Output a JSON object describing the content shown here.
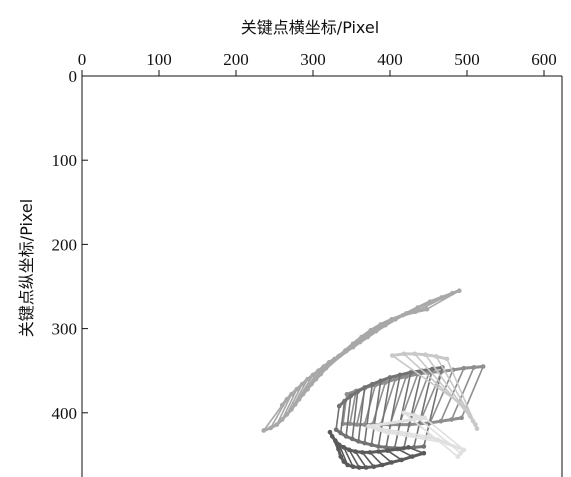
{
  "chart_data": {
    "type": "line",
    "xlabel": "关键点横坐标/Pixel",
    "ylabel": "关键点纵坐标/Pixel",
    "xlim": [
      0,
      630
    ],
    "ylim": [
      0,
      480
    ],
    "x_axis_position": "top",
    "y_inverted": true,
    "grid": false,
    "x_ticks": [
      0,
      100,
      200,
      300,
      400,
      500,
      600
    ],
    "y_ticks": [
      0,
      100,
      200,
      300,
      400
    ],
    "colors": [
      "#a8a8a8",
      "#8e8e8e",
      "#727272",
      "#5a5a5a",
      "#c8c8c8",
      "#e0e0e0"
    ],
    "series": [
      {
        "color": "#a8a8a8",
        "segments": [
          [
            [
              236,
              421
            ],
            [
              260,
              391
            ]
          ],
          [
            [
              245,
              418
            ],
            [
              266,
              384
            ]
          ],
          [
            [
              253,
              414
            ],
            [
              272,
              378
            ]
          ],
          [
            [
              260,
              408
            ],
            [
              279,
              372
            ]
          ],
          [
            [
              266,
              402
            ],
            [
              286,
              366
            ]
          ],
          [
            [
              272,
              396
            ],
            [
              293,
              360
            ]
          ],
          [
            [
              277,
              390
            ],
            [
              300,
              355
            ]
          ],
          [
            [
              282,
              384
            ],
            [
              307,
              350
            ]
          ],
          [
            [
              287,
              378
            ],
            [
              314,
              345
            ]
          ],
          [
            [
              293,
              372
            ],
            [
              321,
              340
            ]
          ],
          [
            [
              298,
              366
            ],
            [
              328,
              336
            ]
          ],
          [
            [
              304,
              360
            ],
            [
              335,
              332
            ]
          ],
          [
            [
              310,
              354
            ],
            [
              343,
              327
            ]
          ],
          [
            [
              317,
              347
            ],
            [
              352,
              322
            ]
          ],
          [
            [
              324,
              340
            ],
            [
              361,
              316
            ]
          ],
          [
            [
              333,
              333
            ],
            [
              371,
              310
            ]
          ],
          [
            [
              342,
              326
            ],
            [
              382,
              303
            ]
          ],
          [
            [
              352,
              318
            ],
            [
              394,
              296
            ]
          ],
          [
            [
              363,
              310
            ],
            [
              407,
              289
            ]
          ],
          [
            [
              375,
              302
            ],
            [
              421,
              282
            ]
          ],
          [
            [
              388,
              295
            ],
            [
              436,
              275
            ]
          ],
          [
            [
              402,
              289
            ],
            [
              452,
              268
            ]
          ],
          [
            [
              417,
              284
            ],
            [
              467,
              263
            ]
          ],
          [
            [
              433,
              280
            ],
            [
              481,
              258
            ]
          ],
          [
            [
              448,
              277
            ],
            [
              490,
              255
            ]
          ]
        ]
      },
      {
        "color": "#8e8e8e",
        "segments": [
          [
            [
              339,
              413
            ],
            [
              344,
              378
            ]
          ],
          [
            [
              348,
              413
            ],
            [
              356,
              374
            ]
          ],
          [
            [
              357,
              414
            ],
            [
              368,
              370
            ]
          ],
          [
            [
              367,
              414
            ],
            [
              381,
              367
            ]
          ],
          [
            [
              377,
              414
            ],
            [
              394,
              364
            ]
          ],
          [
            [
              388,
              414
            ],
            [
              407,
              360
            ]
          ],
          [
            [
              400,
              414
            ],
            [
              421,
              357
            ]
          ],
          [
            [
              412,
              414
            ],
            [
              436,
              354
            ]
          ],
          [
            [
              425,
              414
            ],
            [
              451,
              352
            ]
          ],
          [
            [
              438,
              413
            ],
            [
              467,
              351
            ]
          ],
          [
            [
              452,
              412
            ],
            [
              482,
              349
            ]
          ],
          [
            [
              466,
              410
            ],
            [
              496,
              347
            ]
          ],
          [
            [
              480,
              408
            ],
            [
              509,
              346
            ]
          ],
          [
            [
              493,
              406
            ],
            [
              521,
              345
            ]
          ]
        ]
      },
      {
        "color": "#727272",
        "segments": [
          [
            [
              330,
              420
            ],
            [
              334,
              392
            ]
          ],
          [
            [
              336,
              424
            ],
            [
              341,
              386
            ]
          ],
          [
            [
              343,
              428
            ],
            [
              349,
              380
            ]
          ],
          [
            [
              351,
              431
            ],
            [
              358,
              375
            ]
          ],
          [
            [
              359,
              434
            ],
            [
              367,
              370
            ]
          ],
          [
            [
              367,
              436
            ],
            [
              377,
              366
            ]
          ],
          [
            [
              376,
              438
            ],
            [
              388,
              362
            ]
          ],
          [
            [
              385,
              440
            ],
            [
              400,
              358
            ]
          ],
          [
            [
              395,
              441
            ],
            [
              413,
              355
            ]
          ],
          [
            [
              406,
              442
            ],
            [
              427,
              352
            ]
          ],
          [
            [
              418,
              442
            ],
            [
              441,
              350
            ]
          ],
          [
            [
              431,
              441
            ],
            [
              455,
              348
            ]
          ],
          [
            [
              444,
              440
            ],
            [
              468,
              346
            ]
          ]
        ]
      },
      {
        "color": "#5a5a5a",
        "segments": [
          [
            [
              322,
              423
            ],
            [
              333,
              443
            ]
          ],
          [
            [
              325,
              428
            ],
            [
              336,
              452
            ]
          ],
          [
            [
              329,
              433
            ],
            [
              340,
              458
            ]
          ],
          [
            [
              334,
              438
            ],
            [
              345,
              462
            ]
          ],
          [
            [
              340,
              441
            ],
            [
              352,
              464
            ]
          ],
          [
            [
              347,
              444
            ],
            [
              360,
              465
            ]
          ],
          [
            [
              355,
              446
            ],
            [
              369,
              465
            ]
          ],
          [
            [
              364,
              447
            ],
            [
              379,
              464
            ]
          ],
          [
            [
              374,
              447
            ],
            [
              390,
              462
            ]
          ],
          [
            [
              385,
              446
            ],
            [
              402,
              459
            ]
          ],
          [
            [
              397,
              445
            ],
            [
              415,
              456
            ]
          ],
          [
            [
              410,
              443
            ],
            [
              429,
              452
            ]
          ],
          [
            [
              424,
              441
            ],
            [
              444,
              448
            ]
          ]
        ]
      },
      {
        "color": "#c8c8c8",
        "segments": [
          [
            [
              403,
              332
            ],
            [
              490,
              388
            ]
          ],
          [
            [
              418,
              330
            ],
            [
              498,
              396
            ]
          ],
          [
            [
              432,
              330
            ],
            [
              504,
              404
            ]
          ],
          [
            [
              446,
              331
            ],
            [
              508,
              410
            ]
          ],
          [
            [
              460,
              333
            ],
            [
              511,
              414
            ]
          ],
          [
            [
              474,
              336
            ],
            [
              513,
              419
            ]
          ]
        ]
      },
      {
        "color": "#e0e0e0",
        "segments": [
          [
            [
              418,
              400
            ],
            [
              488,
              452
            ]
          ],
          [
            [
              432,
              403
            ],
            [
              492,
              448
            ]
          ],
          [
            [
              445,
              406
            ],
            [
              496,
              444
            ]
          ],
          [
            [
              372,
              416
            ],
            [
              450,
              428
            ]
          ],
          [
            [
              385,
              420
            ],
            [
              462,
              432
            ]
          ],
          [
            [
              398,
              424
            ],
            [
              474,
              436
            ]
          ]
        ]
      }
    ]
  }
}
